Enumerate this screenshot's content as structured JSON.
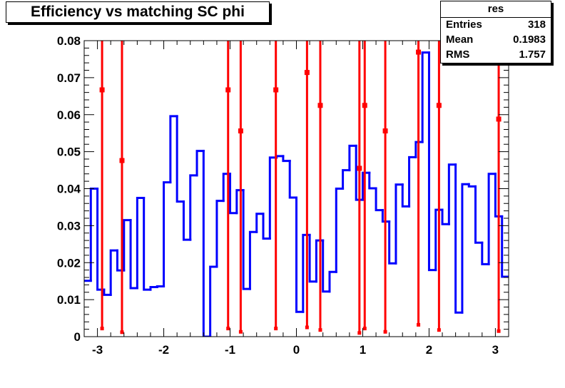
{
  "title": "Efficiency vs matching SC phi",
  "stats": {
    "name": "res",
    "rows": [
      {
        "key": "Entries",
        "value": "318"
      },
      {
        "key": "Mean",
        "value": "0.1983"
      },
      {
        "key": "RMS",
        "value": "1.757"
      }
    ]
  },
  "colors": {
    "histogram": "#0000ff",
    "points": "#ff0000",
    "axes": "#000000"
  },
  "chart_data": {
    "type": "line",
    "title": "Efficiency vs matching SC phi",
    "xlabel": "",
    "ylabel": "",
    "xlim": [
      -3.2,
      3.2
    ],
    "ylim": [
      0,
      0.08
    ],
    "grid": false,
    "legend": "none",
    "x_ticks": [
      "-3",
      "-2",
      "-1",
      "0",
      "1",
      "2",
      "3"
    ],
    "y_ticks": [
      "0",
      "0.01",
      "0.02",
      "0.03",
      "0.04",
      "0.05",
      "0.06",
      "0.07",
      "0.08"
    ],
    "series": [
      {
        "style": "step",
        "bin_edges": [
          -3.2,
          -3.1,
          -3.0,
          -2.9,
          -2.8,
          -2.7,
          -2.6,
          -2.5,
          -2.4,
          -2.3,
          -2.2,
          -2.1,
          -2.0,
          -1.9,
          -1.8,
          -1.7,
          -1.6,
          -1.5,
          -1.4,
          -1.3,
          -1.2,
          -1.1,
          -1.0,
          -0.9,
          -0.8,
          -0.7,
          -0.6,
          -0.5,
          -0.4,
          -0.3,
          -0.2,
          -0.1,
          0.0,
          0.1,
          0.2,
          0.3,
          0.4,
          0.5,
          0.6,
          0.7,
          0.8,
          0.9,
          1.0,
          1.1,
          1.2,
          1.3,
          1.4,
          1.5,
          1.6,
          1.7,
          1.8,
          1.9,
          2.0,
          2.1,
          2.2,
          2.3,
          2.4,
          2.5,
          2.6,
          2.7,
          2.8,
          2.9,
          3.0,
          3.1,
          3.2
        ],
        "values": [
          0.0151,
          0.04,
          0.0127,
          0.0113,
          0.0233,
          0.0179,
          0.0315,
          0.0131,
          0.0375,
          0.0127,
          0.0134,
          0.0136,
          0.0417,
          0.0596,
          0.0365,
          0.0262,
          0.0436,
          0.0502,
          0.0,
          0.0189,
          0.0367,
          0.044,
          0.0334,
          0.0396,
          0.0129,
          0.0283,
          0.0332,
          0.0265,
          0.0484,
          0.0488,
          0.0475,
          0.0376,
          0.0067,
          0.0275,
          0.0149,
          0.026,
          0.0122,
          0.0175,
          0.04,
          0.045,
          0.0516,
          0.037,
          0.0443,
          0.0401,
          0.0342,
          0.0311,
          0.0198,
          0.0411,
          0.0352,
          0.0485,
          0.0526,
          0.0768,
          0.018,
          0.0343,
          0.0304,
          0.0465,
          0.0065,
          0.0412,
          0.0406,
          0.0254,
          0.0196,
          0.044,
          0.0325,
          0.0162
        ]
      },
      {
        "style": "points-with-errors",
        "points": [
          {
            "x": -2.93,
            "y": 0.0667,
            "lo": 0.0022,
            "hi": 0.08
          },
          {
            "x": -2.63,
            "y": 0.0476,
            "lo": 0.0012,
            "hi": 0.08
          },
          {
            "x": -1.03,
            "y": 0.0667,
            "lo": 0.0022,
            "hi": 0.08
          },
          {
            "x": -0.84,
            "y": 0.0556,
            "lo": 0.0013,
            "hi": 0.08
          },
          {
            "x": -0.31,
            "y": 0.0667,
            "lo": 0.0022,
            "hi": 0.08
          },
          {
            "x": 0.16,
            "y": 0.0714,
            "lo": 0.0025,
            "hi": 0.08
          },
          {
            "x": 0.36,
            "y": 0.0625,
            "lo": 0.0018,
            "hi": 0.08
          },
          {
            "x": 0.95,
            "y": 0.0455,
            "lo": 0.001,
            "hi": 0.08
          },
          {
            "x": 1.03,
            "y": 0.0625,
            "lo": 0.0022,
            "hi": 0.08
          },
          {
            "x": 1.34,
            "y": 0.0556,
            "lo": 0.0013,
            "hi": 0.08
          },
          {
            "x": 1.84,
            "y": 0.0769,
            "lo": 0.0032,
            "hi": 0.08
          },
          {
            "x": 2.15,
            "y": 0.0625,
            "lo": 0.0018,
            "hi": 0.08
          },
          {
            "x": 3.05,
            "y": 0.0588,
            "lo": 0.0015,
            "hi": 0.08
          }
        ]
      }
    ]
  }
}
